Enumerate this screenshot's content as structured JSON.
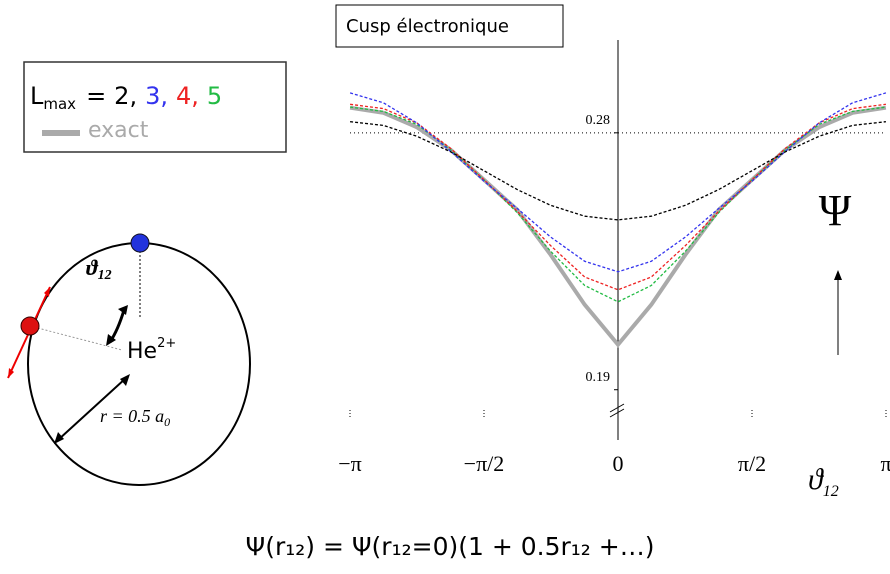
{
  "chart_data": {
    "type": "line",
    "title": "Cusp électronique",
    "x": [
      -3.14,
      -2.75,
      -2.36,
      -1.96,
      -1.57,
      -1.18,
      -0.79,
      -0.39,
      0,
      0.39,
      0.79,
      1.18,
      1.57,
      1.96,
      2.36,
      2.75,
      3.14
    ],
    "xlim": [
      -3.1416,
      3.1416
    ],
    "xticks": [
      {
        "value": -3.1416,
        "label": "−π"
      },
      {
        "value": -1.5708,
        "label": "−π/2"
      },
      0,
      {
        "value": 1.5708,
        "label": "π/2"
      },
      {
        "value": 3.1416,
        "label": "π"
      }
    ],
    "ylim": [
      0.185,
      0.295
    ],
    "yticks": [
      0.19,
      0.28
    ],
    "hline": 0.28,
    "x_label": {
      "main": "ϑ",
      "sub": "12"
    },
    "y_label": "Ψ",
    "legend": {
      "main": "L",
      "sub": "max",
      "equals": "="
    },
    "series": [
      {
        "name": "2,",
        "color": "#000000",
        "dashed": true,
        "values": [
          0.2839,
          0.2826,
          0.2788,
          0.2733,
          0.2667,
          0.2601,
          0.2546,
          0.2508,
          0.2495,
          0.2508,
          0.2546,
          0.2601,
          0.2667,
          0.2733,
          0.2788,
          0.2826,
          0.2839
        ]
      },
      {
        "name": "3,",
        "color": "#3333ee",
        "dashed": true,
        "values": [
          0.294,
          0.2905,
          0.2835,
          0.2735,
          0.263,
          0.2535,
          0.2435,
          0.235,
          0.2313,
          0.235,
          0.2435,
          0.2535,
          0.263,
          0.2735,
          0.2835,
          0.2905,
          0.294
        ]
      },
      {
        "name": "4,",
        "color": "#ee2222",
        "dashed": true,
        "values": [
          0.29,
          0.2885,
          0.2835,
          0.2745,
          0.2635,
          0.2525,
          0.2405,
          0.2295,
          0.225,
          0.2295,
          0.2405,
          0.2525,
          0.2635,
          0.2745,
          0.2835,
          0.2885,
          0.29
        ]
      },
      {
        "name": "5",
        "color": "#22bb44",
        "dashed": true,
        "values": [
          0.289,
          0.2875,
          0.283,
          0.274,
          0.2635,
          0.252,
          0.2385,
          0.2265,
          0.2208,
          0.2265,
          0.2385,
          0.252,
          0.2635,
          0.274,
          0.283,
          0.2875,
          0.289
        ]
      },
      {
        "name": "exact",
        "color": "#aaaaaa",
        "dashed": false,
        "values": [
          0.2888,
          0.287,
          0.282,
          0.274,
          0.2635,
          0.253,
          0.2373,
          0.2198,
          0.2058,
          0.2198,
          0.2373,
          0.253,
          0.2635,
          0.274,
          0.282,
          0.287,
          0.2888
        ]
      }
    ]
  },
  "diagram": {
    "angle": {
      "main": "ϑ",
      "sub": "12"
    },
    "nucleus": {
      "main": "He",
      "sup": "2+"
    },
    "radius": {
      "main": "r = 0.5 a",
      "sub": "0"
    }
  },
  "formula": "Ψ(r₁₂) = Ψ(r₁₂=0)(1 + 0.5r₁₂ +…)"
}
